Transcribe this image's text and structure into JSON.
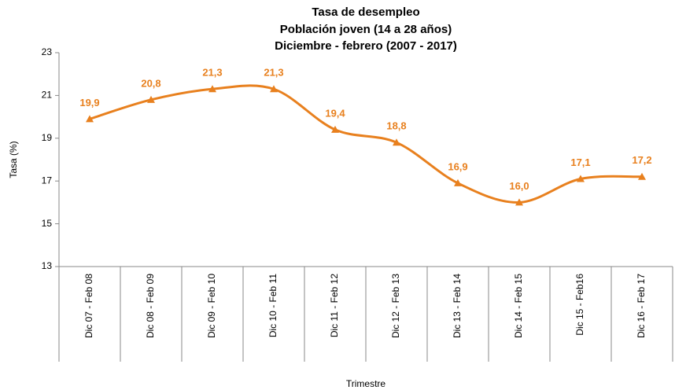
{
  "chart_data": {
    "type": "line",
    "title": [
      "Tasa de desempleo",
      "Población joven (14 a 28  años)",
      "Diciembre - febrero (2007 - 2017)"
    ],
    "x_label": "Trimestre",
    "y_label": "Tasa (%)",
    "categories": [
      "Dic 07 - Feb 08",
      "Dic 08 - Feb 09",
      "Dic 09 - Feb 10",
      "Dic 10 - Feb 11",
      "Dic 11 - Feb 12",
      "Dic 12 - Feb 13",
      "Dic 13 - Feb 14",
      "Dic 14 - Feb 15",
      "Dic 15 - Feb16",
      "Dic 16 - Feb 17"
    ],
    "series": [
      {
        "name": "Tasa",
        "color": "#e8801e",
        "values": [
          19.9,
          20.8,
          21.3,
          21.3,
          19.4,
          18.8,
          16.9,
          16.0,
          17.1,
          17.2
        ],
        "value_labels": [
          "19,9",
          "20,8",
          "21,3",
          "21,3",
          "19,4",
          "18,8",
          "16,9",
          "16,0",
          "17,1",
          "17,2"
        ]
      }
    ],
    "ylim": [
      13,
      23
    ],
    "yticks": [
      13,
      15,
      17,
      19,
      21,
      23
    ],
    "grid": false
  }
}
